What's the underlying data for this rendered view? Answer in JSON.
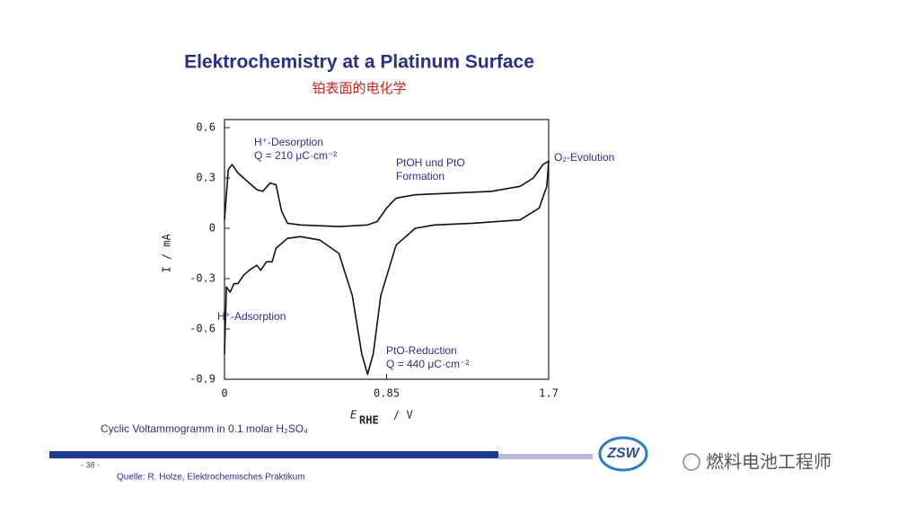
{
  "slide": {
    "title": "Elektrochemistry at a Platinum Surface",
    "subtitle": "铂表面的电化学",
    "caption": "Cyclic Voltammogramm in 0.1 molar H₂SO₄",
    "page": "- 38 -",
    "source": "Quelle: R. Holze, Elektrochemisches Praktikum",
    "logo": "ZSW",
    "watermark": "燃料电池工程师"
  },
  "chart_data": {
    "type": "line",
    "y_label": "I / mA",
    "x_label": [
      "E",
      "RHE",
      "/ V"
    ],
    "annotations": [
      "H⁺-Desorption",
      "Q = 210 μC·cm⁻²",
      "PtOH und PtO",
      "Formation",
      "O₂-Evolution",
      "H⁺-Adsorption",
      "PtO-Reduction",
      "Q = 440 μC·cm⁻²"
    ],
    "xlim": [
      0,
      1.7
    ],
    "ylim": [
      -0.9,
      0.6
    ],
    "xticks": [
      0,
      0.85,
      1.7
    ],
    "yticks": [
      0.6,
      0.3,
      0,
      -0.3,
      -0.6,
      -0.9
    ],
    "series": [
      {
        "color": "#111111",
        "x": [
          0.0,
          0.02,
          0.04,
          0.07,
          0.1,
          0.13,
          0.17,
          0.2,
          0.24,
          0.27,
          0.3,
          0.33,
          0.4,
          0.6,
          0.75,
          0.8,
          0.85,
          0.9,
          1.0,
          1.2,
          1.4,
          1.55,
          1.62,
          1.67,
          1.7,
          1.69,
          1.65,
          1.55,
          1.3,
          1.1,
          1.0,
          0.9,
          0.82,
          0.78,
          0.75,
          0.72,
          0.67,
          0.6,
          0.5,
          0.4,
          0.33,
          0.27,
          0.25,
          0.22,
          0.19,
          0.17,
          0.13,
          0.1,
          0.07,
          0.05,
          0.03,
          0.01,
          0.0
        ],
        "values": [
          0.05,
          0.35,
          0.38,
          0.33,
          0.3,
          0.27,
          0.23,
          0.22,
          0.27,
          0.26,
          0.1,
          0.03,
          0.02,
          0.01,
          0.02,
          0.04,
          0.12,
          0.18,
          0.2,
          0.21,
          0.22,
          0.25,
          0.3,
          0.38,
          0.4,
          0.25,
          0.12,
          0.05,
          0.03,
          0.02,
          0.0,
          -0.1,
          -0.4,
          -0.75,
          -0.87,
          -0.75,
          -0.4,
          -0.15,
          -0.07,
          -0.05,
          -0.06,
          -0.12,
          -0.2,
          -0.2,
          -0.25,
          -0.22,
          -0.25,
          -0.28,
          -0.33,
          -0.33,
          -0.38,
          -0.35,
          -0.75
        ]
      }
    ]
  }
}
